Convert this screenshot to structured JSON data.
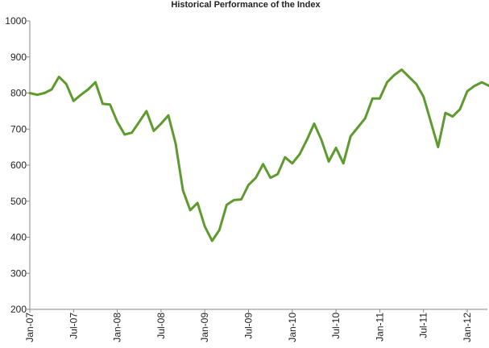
{
  "chart_data": {
    "type": "line",
    "title": "Historical Performance of the Index",
    "categories": [
      "Jan-07",
      null,
      null,
      null,
      null,
      null,
      "Jul-07",
      null,
      null,
      null,
      null,
      null,
      "Jan-08",
      null,
      null,
      null,
      null,
      null,
      "Jul-08",
      null,
      null,
      null,
      null,
      null,
      "Jan-09",
      null,
      null,
      null,
      null,
      null,
      "Jul-09",
      null,
      null,
      null,
      null,
      null,
      "Jan-10",
      null,
      null,
      null,
      null,
      null,
      "Jul-10",
      null,
      null,
      null,
      null,
      null,
      "Jan-11",
      null,
      null,
      null,
      null,
      null,
      "Jul-11",
      null,
      null,
      null,
      null,
      null,
      "Jan-12",
      null,
      null,
      null
    ],
    "series": [
      {
        "name": "Index",
        "color": "#5e9a2e",
        "values": [
          800,
          795,
          800,
          810,
          845,
          825,
          778,
          795,
          810,
          830,
          770,
          768,
          720,
          685,
          690,
          720,
          750,
          695,
          715,
          738,
          660,
          530,
          475,
          495,
          430,
          390,
          420,
          490,
          503,
          505,
          545,
          565,
          603,
          565,
          575,
          622,
          605,
          630,
          670,
          715,
          670,
          610,
          648,
          605,
          680,
          705,
          730,
          785,
          785,
          830,
          850,
          865,
          845,
          825,
          790,
          720,
          650,
          745,
          735,
          755,
          805,
          820,
          830,
          820
        ]
      }
    ],
    "ylim": [
      200,
      1000
    ],
    "yticks": [
      200,
      300,
      400,
      500,
      600,
      700,
      800,
      900,
      1000
    ],
    "grid": false
  }
}
